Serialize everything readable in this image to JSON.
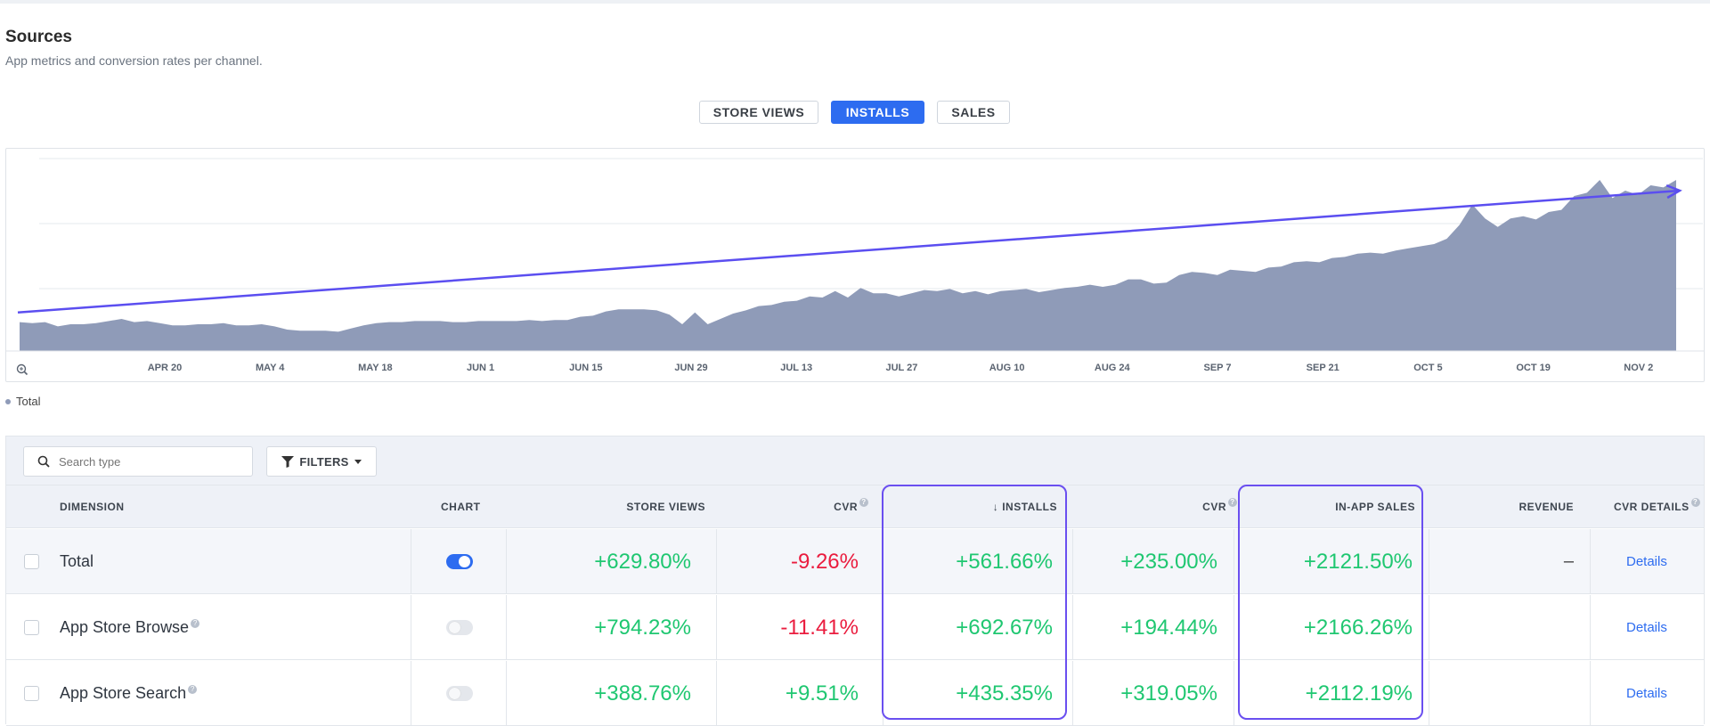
{
  "header": {
    "title": "Sources",
    "subtitle": "App metrics and conversion rates per channel."
  },
  "metric_tabs": [
    {
      "label": "STORE VIEWS",
      "active": false
    },
    {
      "label": "INSTALLS",
      "active": true
    },
    {
      "label": "SALES",
      "active": false
    }
  ],
  "chart_data": {
    "type": "area",
    "x_tick_labels": [
      "APR 20",
      "MAY 4",
      "MAY 18",
      "JUN 1",
      "JUN 15",
      "JUN 29",
      "JUL 13",
      "JUL 27",
      "AUG 10",
      "AUG 24",
      "SEP 7",
      "SEP 21",
      "OCT 5",
      "OCT 19",
      "NOV 2"
    ],
    "series": [
      {
        "name": "Total",
        "color": "#8f9bb8",
        "values": [
          27,
          26,
          27,
          23,
          25,
          25,
          26,
          28,
          30,
          27,
          28,
          26,
          24,
          24,
          25,
          25,
          26,
          24,
          24,
          25,
          23,
          20,
          19,
          19,
          19,
          18,
          21,
          24,
          26,
          27,
          27,
          28,
          28,
          28,
          27,
          27,
          28,
          28,
          28,
          28,
          29,
          28,
          29,
          29,
          32,
          33,
          37,
          39,
          39,
          39,
          38,
          34,
          25,
          36,
          25,
          30,
          35,
          38,
          42,
          43,
          46,
          47,
          51,
          50,
          56,
          50,
          59,
          54,
          54,
          51,
          54,
          57,
          56,
          58,
          54,
          56,
          53,
          56,
          57,
          58,
          55,
          57,
          59,
          60,
          62,
          60,
          62,
          67,
          67,
          63,
          64,
          71,
          74,
          73,
          71,
          76,
          75,
          74,
          78,
          79,
          83,
          84,
          83,
          87,
          88,
          91,
          92,
          91,
          94,
          96,
          98,
          100,
          105,
          118,
          137,
          124,
          116,
          124,
          126,
          123,
          130,
          132,
          145,
          148,
          160,
          143,
          150,
          146,
          155,
          153,
          160
        ]
      }
    ],
    "trend_arrow": {
      "from_value": 36,
      "to_value": 150,
      "color": "#5b4ef0"
    },
    "legend": {
      "position": "bottom-left",
      "entries": [
        "Total"
      ]
    }
  },
  "legend_label": "Total",
  "toolbar": {
    "search_placeholder": "Search type",
    "filters_label": "FILTERS"
  },
  "table": {
    "columns": {
      "dimension": "DIMENSION",
      "chart": "CHART",
      "store_views": "STORE VIEWS",
      "cvr1": "CVR",
      "installs": "INSTALLS",
      "cvr2": "CVR",
      "in_app_sales": "IN-APP SALES",
      "revenue": "REVENUE",
      "cvr_details": "CVR DETAILS"
    },
    "sorted_column_marker": "↓",
    "rows": [
      {
        "name": "Total",
        "chart_on": true,
        "store_views": "+629.80%",
        "cvr1": "-9.26%",
        "installs": "+561.66%",
        "cvr2": "+235.00%",
        "in_app_sales": "+2121.50%",
        "revenue": "–",
        "details": "Details"
      },
      {
        "name": "App Store Browse",
        "chart_on": false,
        "store_views": "+794.23%",
        "cvr1": "-11.41%",
        "installs": "+692.67%",
        "cvr2": "+194.44%",
        "in_app_sales": "+2166.26%",
        "revenue": "",
        "details": "Details"
      },
      {
        "name": "App Store Search",
        "chart_on": false,
        "store_views": "+388.76%",
        "cvr1": "+9.51%",
        "installs": "+435.35%",
        "cvr2": "+319.05%",
        "in_app_sales": "+2112.19%",
        "revenue": "",
        "details": "Details"
      }
    ]
  },
  "colors": {
    "accent": "#2d6cf0",
    "positive": "#1fc771",
    "negative": "#ea1c3e",
    "highlight": "#6a4ff0"
  }
}
